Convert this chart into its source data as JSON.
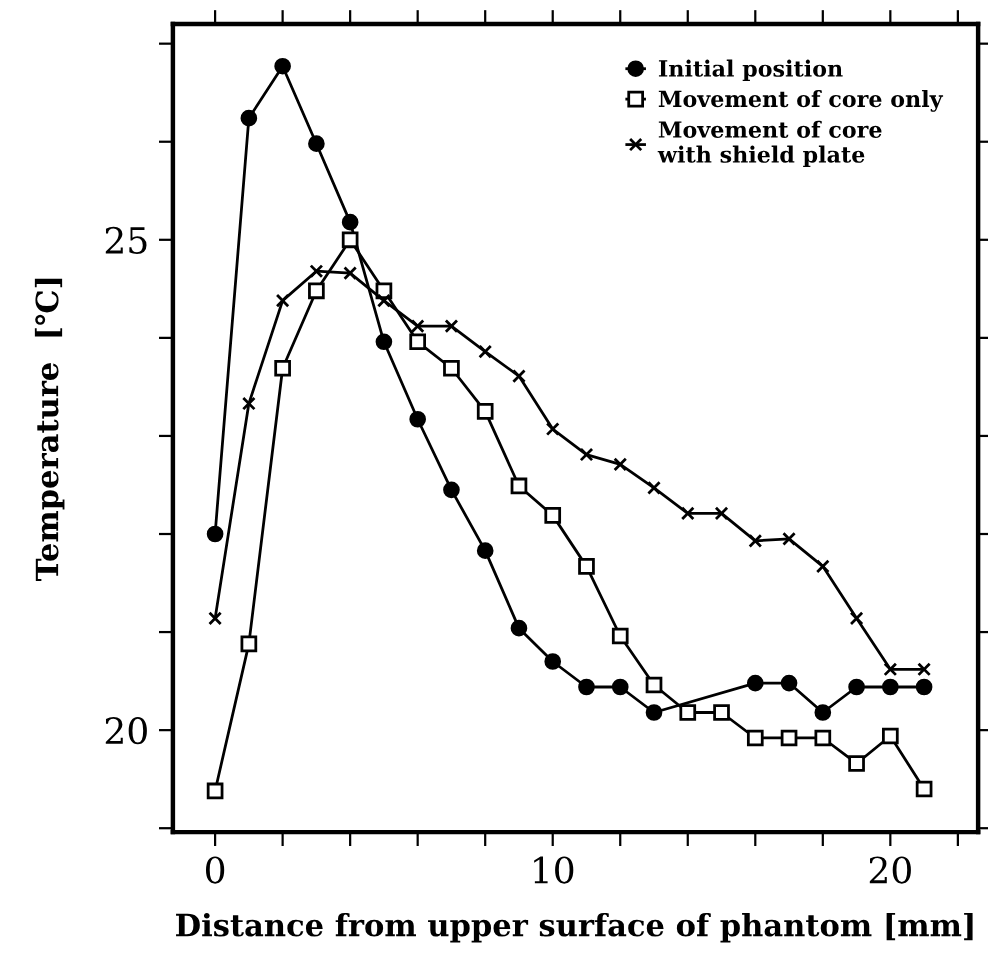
{
  "chart_data": {
    "type": "line",
    "xlabel": "Distance from upper surface of phantom [mm]",
    "ylabel": "Temperature  [℃]",
    "x": [
      0,
      1,
      2,
      3,
      4,
      5,
      6,
      7,
      8,
      9,
      10,
      11,
      12,
      13,
      14,
      15,
      16,
      17,
      18,
      19,
      20,
      21
    ],
    "series": [
      {
        "name": "Initial position",
        "color": "#000000",
        "marker": "circle",
        "values": [
          22.0,
          26.24,
          26.77,
          25.98,
          25.18,
          23.96,
          23.17,
          22.45,
          21.83,
          21.04,
          20.7,
          20.44,
          20.44,
          20.18,
          null,
          null,
          20.48,
          20.48,
          20.18,
          20.44,
          20.44,
          20.44
        ]
      },
      {
        "name": "Movement of core only",
        "color": "#000000",
        "marker": "square",
        "values": [
          19.38,
          20.88,
          23.69,
          24.48,
          25.0,
          24.48,
          23.96,
          23.69,
          23.25,
          22.49,
          22.19,
          21.67,
          20.96,
          20.46,
          20.18,
          20.18,
          19.92,
          19.92,
          19.92,
          19.66,
          19.94,
          19.4
        ]
      },
      {
        "name": "Movement of core\nwith shield plate",
        "color": "#000000",
        "marker": "cross",
        "values": [
          21.14,
          23.33,
          24.38,
          24.68,
          24.66,
          24.38,
          24.12,
          24.12,
          23.86,
          23.61,
          23.07,
          22.81,
          22.71,
          22.47,
          22.21,
          22.21,
          21.93,
          21.95,
          21.67,
          21.14,
          20.62,
          20.62
        ]
      }
    ],
    "xlim": [
      -1.25,
      22.6
    ],
    "ylim": [
      18.96,
      27.2
    ],
    "xticks": [
      0,
      {
        "value": 2,
        "label": null
      },
      {
        "value": 4,
        "label": null
      },
      {
        "value": 6,
        "label": null
      },
      {
        "value": 8,
        "label": null
      },
      10,
      {
        "value": 12,
        "label": null
      },
      {
        "value": 14,
        "label": null
      },
      {
        "value": 16,
        "label": null
      },
      {
        "value": 18,
        "label": null
      },
      20,
      {
        "value": 22,
        "label": null
      }
    ],
    "yticks": [
      {
        "value": 19,
        "label": null
      },
      20,
      {
        "value": 21,
        "label": null
      },
      {
        "value": 22,
        "label": null
      },
      {
        "value": 23,
        "label": null
      },
      {
        "value": 24,
        "label": null
      },
      25,
      {
        "value": 26,
        "label": null
      },
      {
        "value": 27,
        "label": null
      }
    ],
    "grid": false,
    "legend": "top right",
    "line_style": "solid"
  }
}
